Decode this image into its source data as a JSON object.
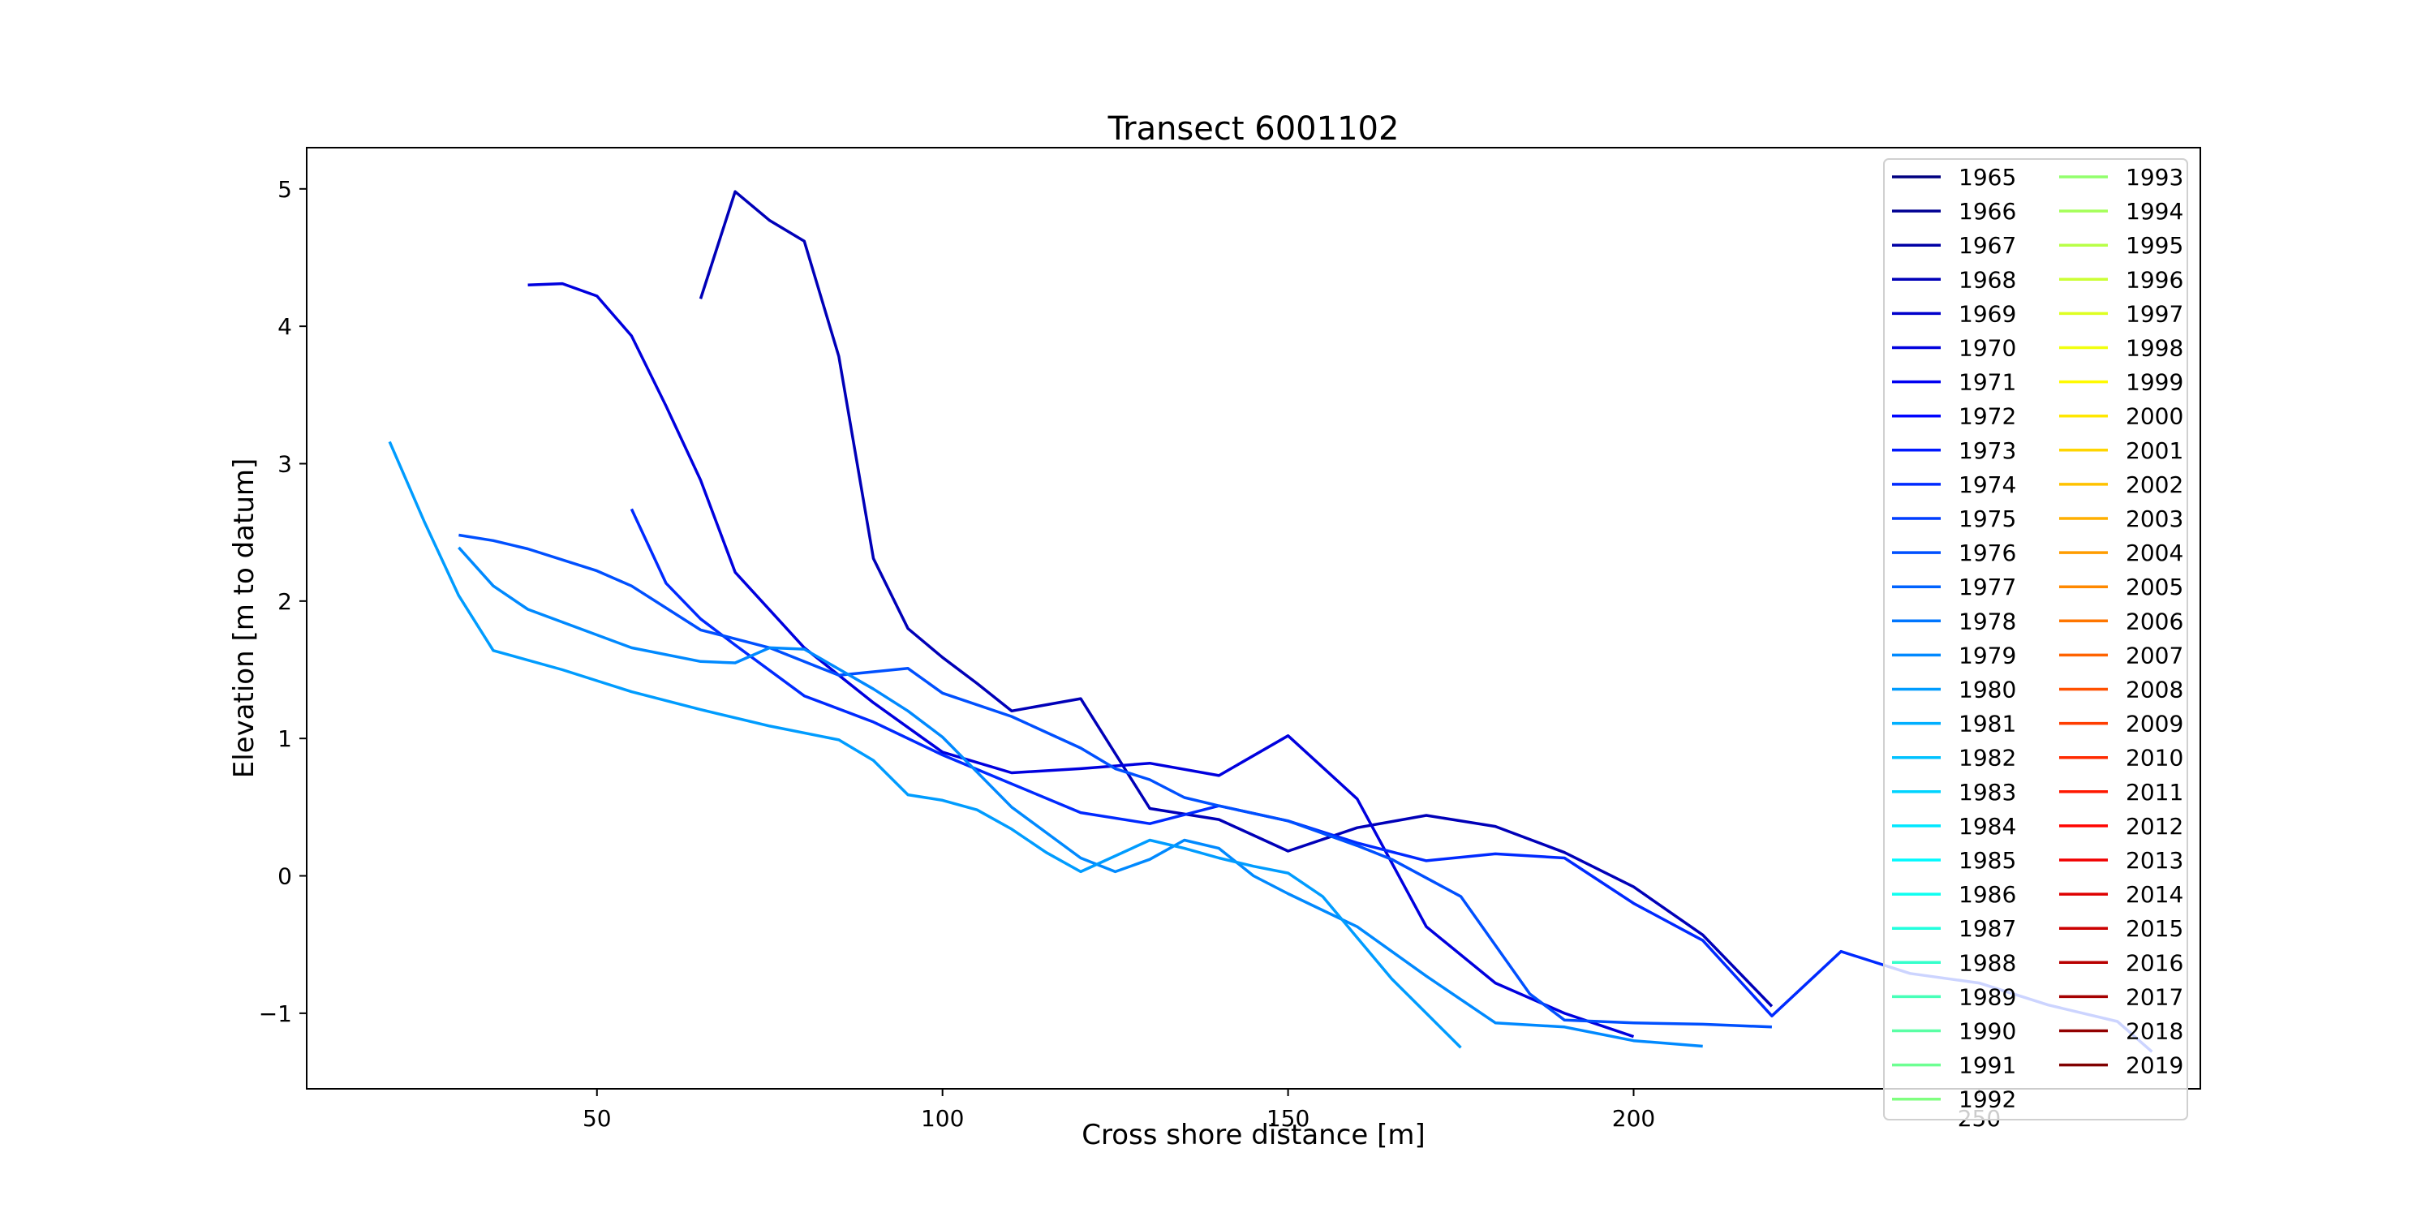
{
  "chart_data": {
    "type": "line",
    "title": "Transect 6001102",
    "xlabel": "Cross shore distance [m]",
    "ylabel": "Elevation [m to datum]",
    "xlim": [
      8,
      282
    ],
    "ylim": [
      -1.55,
      5.3
    ],
    "xticks": [
      50,
      100,
      150,
      200,
      250
    ],
    "yticks": [
      -1,
      0,
      1,
      2,
      3,
      4,
      5
    ],
    "grid": false,
    "legend_placement": "upper right, two columns",
    "legend_entries": [
      "1965",
      "1966",
      "1967",
      "1968",
      "1969",
      "1970",
      "1971",
      "1972",
      "1973",
      "1974",
      "1975",
      "1976",
      "1977",
      "1978",
      "1979",
      "1980",
      "1981",
      "1982",
      "1983",
      "1984",
      "1985",
      "1986",
      "1987",
      "1988",
      "1989",
      "1990",
      "1991",
      "1992",
      "1993",
      "1994",
      "1995",
      "1996",
      "1997",
      "1998",
      "1999",
      "2000",
      "2001",
      "2002",
      "2003",
      "2004",
      "2005",
      "2006",
      "2007",
      "2008",
      "2009",
      "2010",
      "2011",
      "2012",
      "2013",
      "2014",
      "2015",
      "2016",
      "2017",
      "2018",
      "2019"
    ],
    "colormap": "jet",
    "series": [
      {
        "name": "1968",
        "x": [
          65,
          70,
          75,
          80,
          85,
          90,
          95,
          100,
          105,
          110,
          120,
          130,
          140,
          150,
          160,
          170,
          180,
          190,
          200,
          210,
          220
        ],
        "values": [
          4.2,
          4.98,
          4.77,
          4.62,
          3.78,
          2.31,
          1.8,
          1.59,
          1.4,
          1.2,
          1.29,
          0.49,
          0.41,
          0.18,
          0.35,
          0.44,
          0.36,
          0.17,
          -0.08,
          -0.43,
          -0.95
        ]
      },
      {
        "name": "1970",
        "x": [
          40,
          45,
          50,
          55,
          60,
          65,
          70,
          80,
          90,
          100,
          110,
          120,
          130,
          140,
          150,
          160,
          170,
          180,
          190,
          200
        ],
        "values": [
          4.3,
          4.31,
          4.22,
          3.93,
          3.42,
          2.88,
          2.21,
          1.66,
          1.26,
          0.9,
          0.75,
          0.78,
          0.82,
          0.73,
          1.02,
          0.56,
          -0.37,
          -0.78,
          -1.0,
          -1.17
        ]
      },
      {
        "name": "1974",
        "x": [
          55,
          60,
          65,
          70,
          80,
          90,
          100,
          110,
          120,
          130,
          140,
          150,
          160,
          170,
          180,
          190,
          200,
          210,
          220,
          230,
          240,
          250,
          260,
          270,
          275
        ],
        "values": [
          2.67,
          2.13,
          1.87,
          1.68,
          1.31,
          1.12,
          0.88,
          0.67,
          0.46,
          0.38,
          0.51,
          0.4,
          0.24,
          0.11,
          0.16,
          0.13,
          -0.2,
          -0.47,
          -1.02,
          -0.55,
          -0.71,
          -0.78,
          -0.94,
          -1.06,
          -1.28
        ]
      },
      {
        "name": "1976",
        "x": [
          30,
          35,
          40,
          50,
          55,
          65,
          75,
          85,
          95,
          100,
          110,
          120,
          125,
          130,
          135,
          140,
          150,
          160,
          165,
          175,
          185,
          190,
          200,
          210,
          220
        ],
        "values": [
          2.48,
          2.44,
          2.38,
          2.22,
          2.11,
          1.79,
          1.66,
          1.46,
          1.51,
          1.33,
          1.16,
          0.93,
          0.78,
          0.7,
          0.57,
          0.51,
          0.4,
          0.22,
          0.12,
          -0.15,
          -0.86,
          -1.05,
          -1.07,
          -1.08,
          -1.1
        ]
      },
      {
        "name": "1979",
        "x": [
          30,
          35,
          40,
          55,
          65,
          70,
          75,
          80,
          90,
          95,
          100,
          110,
          120,
          125,
          130,
          135,
          140,
          145,
          150,
          160,
          170,
          180,
          190,
          200,
          210
        ],
        "values": [
          2.39,
          2.11,
          1.94,
          1.66,
          1.56,
          1.55,
          1.66,
          1.65,
          1.36,
          1.2,
          1.01,
          0.5,
          0.13,
          0.03,
          0.12,
          0.26,
          0.2,
          0.0,
          -0.13,
          -0.37,
          -0.73,
          -1.07,
          -1.1,
          -1.2,
          -1.24
        ]
      },
      {
        "name": "1980",
        "x": [
          20,
          25,
          30,
          35,
          45,
          55,
          65,
          75,
          85,
          90,
          95,
          100,
          105,
          110,
          115,
          120,
          130,
          135,
          140,
          145,
          150,
          155,
          160,
          165,
          170,
          175
        ],
        "values": [
          3.16,
          2.58,
          2.04,
          1.64,
          1.5,
          1.34,
          1.21,
          1.09,
          0.99,
          0.84,
          0.59,
          0.55,
          0.48,
          0.34,
          0.17,
          0.03,
          0.26,
          0.2,
          0.13,
          0.07,
          0.02,
          -0.15,
          -0.45,
          -0.75,
          -1.0,
          -1.25
        ]
      }
    ]
  }
}
